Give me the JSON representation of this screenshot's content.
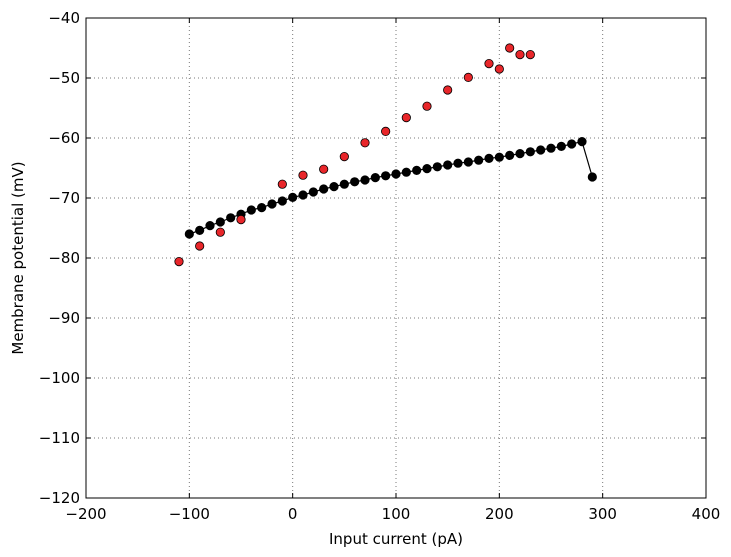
{
  "chart_data": {
    "type": "scatter",
    "xlabel": "Input current (pA)",
    "ylabel": "Membrane potential (mV)",
    "xlim": [
      -200,
      400
    ],
    "ylim": [
      -120,
      -40
    ],
    "xticks": [
      -200,
      -100,
      0,
      100,
      200,
      300,
      400
    ],
    "yticks": [
      -120,
      -110,
      -100,
      -90,
      -80,
      -70,
      -60,
      -50,
      -40
    ],
    "xtick_labels": [
      "−200",
      "−100",
      "0",
      "100",
      "200",
      "300",
      "400"
    ],
    "ytick_labels": [
      "−120",
      "−110",
      "−100",
      "−90",
      "−80",
      "−70",
      "−60",
      "−50",
      "−40"
    ],
    "grid": true,
    "series": [
      {
        "style": "line-markers",
        "color": "#000000",
        "x": [
          -100,
          -90,
          -80,
          -70,
          -60,
          -50,
          -40,
          -30,
          -20,
          -10,
          0,
          10,
          20,
          30,
          40,
          50,
          60,
          70,
          80,
          90,
          100,
          110,
          120,
          130,
          140,
          150,
          160,
          170,
          180,
          190,
          200,
          210,
          220,
          230,
          240,
          250,
          260,
          270,
          280,
          290
        ],
        "y": [
          -76.0,
          -75.4,
          -74.6,
          -74.0,
          -73.3,
          -72.7,
          -72.0,
          -71.6,
          -71.0,
          -70.5,
          -69.9,
          -69.5,
          -69.0,
          -68.5,
          -68.1,
          -67.7,
          -67.3,
          -67.0,
          -66.6,
          -66.3,
          -66.0,
          -65.7,
          -65.4,
          -65.1,
          -64.8,
          -64.5,
          -64.2,
          -64.0,
          -63.7,
          -63.4,
          -63.2,
          -62.9,
          -62.6,
          -62.3,
          -62.0,
          -61.7,
          -61.4,
          -61.0,
          -60.6,
          -66.5
        ]
      },
      {
        "style": "markers",
        "color": "#e8262a",
        "x": [
          -110,
          -90,
          -70,
          -50,
          -10,
          10,
          30,
          50,
          70,
          90,
          110,
          130,
          150,
          170,
          190,
          200,
          210,
          220,
          230
        ],
        "y": [
          -80.6,
          -78.0,
          -75.7,
          -73.6,
          -67.7,
          -66.2,
          -65.2,
          -63.1,
          -60.8,
          -58.9,
          -56.6,
          -54.7,
          -52.0,
          -49.9,
          -47.6,
          -48.5,
          -45.0,
          -46.1,
          -46.1
        ]
      }
    ]
  }
}
